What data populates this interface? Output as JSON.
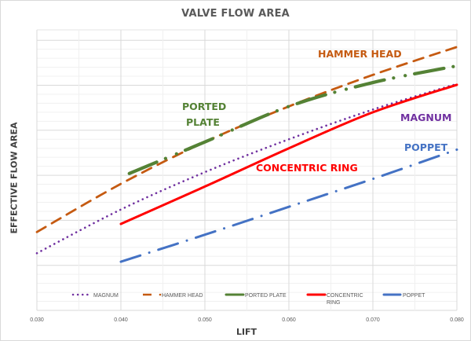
{
  "chart_data": {
    "type": "line",
    "title": "VALVE FLOW AREA",
    "xlabel": "LIFT",
    "ylabel": "EFFECTIVE FLOW AREA",
    "xlim": [
      0.03,
      0.08
    ],
    "x_ticks": [
      "0.030",
      "0.040",
      "0.050",
      "0.060",
      "0.070",
      "0.080"
    ],
    "y_ticks": [],
    "grid": true,
    "legend_position": "bottom-inside",
    "series": [
      {
        "name": "MAGNUM",
        "color": "#7030A0",
        "style": "dotted",
        "x": [
          0.03,
          0.04,
          0.05,
          0.06,
          0.07,
          0.08
        ],
        "y": [
          1.27,
          2.24,
          3.07,
          3.8,
          4.46,
          5.03
        ]
      },
      {
        "name": "HAMMER HEAD",
        "color": "#C55A11",
        "style": "dashed",
        "x": [
          0.03,
          0.04,
          0.05,
          0.06,
          0.07,
          0.08
        ],
        "y": [
          1.74,
          2.81,
          3.74,
          4.53,
          5.23,
          5.85
        ]
      },
      {
        "name": "PORTED PLATE",
        "color": "#548235",
        "style": "long-dash-dot-dot",
        "x": [
          0.041,
          0.05,
          0.06,
          0.07,
          0.08
        ],
        "y": [
          3.04,
          3.74,
          4.53,
          5.06,
          5.43
        ]
      },
      {
        "name": "CONCENTRIC RING",
        "color": "#FF0000",
        "style": "solid",
        "x": [
          0.04,
          0.05,
          0.06,
          0.07,
          0.08
        ],
        "y": [
          1.92,
          2.75,
          3.6,
          4.4,
          5.01
        ]
      },
      {
        "name": "POPPET",
        "color": "#4472C4",
        "style": "dash-dot",
        "x": [
          0.04,
          0.05,
          0.06,
          0.07,
          0.08
        ],
        "y": [
          1.08,
          1.68,
          2.3,
          2.92,
          3.57
        ]
      }
    ],
    "annotations": [
      {
        "text": "HAMMER HEAD",
        "color": "#C55A11"
      },
      {
        "text": "PORTED",
        "color": "#548235"
      },
      {
        "text": "PLATE",
        "color": "#548235"
      },
      {
        "text": "MAGNUM",
        "color": "#7030A0"
      },
      {
        "text": "CONCENTRIC RING",
        "color": "#FF0000"
      },
      {
        "text": "POPPET",
        "color": "#4472C4"
      }
    ]
  },
  "legend": {
    "magnum": "MAGNUM",
    "hammer": "HAMMER HEAD",
    "ported": "PORTED PLATE",
    "concentric_1": "CONCENTRIC",
    "concentric_2": "RING",
    "poppet": "POPPET"
  }
}
